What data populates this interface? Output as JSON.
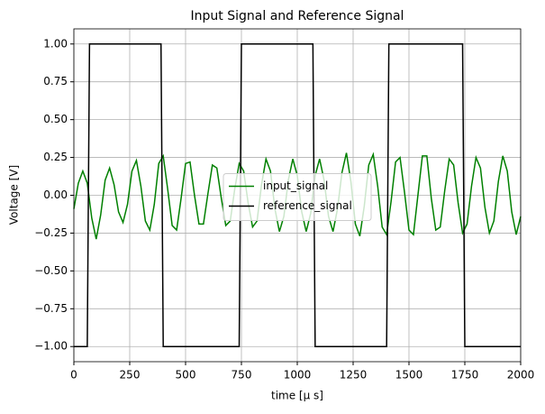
{
  "chart_data": {
    "type": "line",
    "title": "Input Signal and Reference Signal",
    "x_label": "time [μ s]",
    "y_label": "Voltage [V]",
    "xlim": [
      0,
      2000
    ],
    "xticks": [
      0,
      250,
      500,
      750,
      1000,
      1250,
      1500,
      1750,
      2000
    ],
    "ylim": [
      -1.1,
      1.1
    ],
    "yticks": [
      {
        "value": -1,
        "label": "−1.00"
      },
      {
        "value": -0.75,
        "label": "−0.75"
      },
      {
        "value": -0.5,
        "label": "−0.50"
      },
      {
        "value": -0.25,
        "label": "−0.25"
      },
      {
        "value": 0,
        "label": "0.00"
      },
      {
        "value": 0.25,
        "label": "0.25"
      },
      {
        "value": 0.5,
        "label": "0.50"
      },
      {
        "value": 0.75,
        "label": "0.75"
      },
      {
        "value": 1,
        "label": "1.00"
      }
    ],
    "grid": true,
    "legend": "center",
    "series": [
      {
        "name": "input_signal",
        "color": "#008000",
        "x": [
          0,
          20,
          40,
          60,
          80,
          100,
          120,
          140,
          160,
          180,
          200,
          220,
          240,
          260,
          280,
          300,
          320,
          340,
          360,
          380,
          400,
          420,
          440,
          460,
          480,
          500,
          520,
          540,
          560,
          580,
          600,
          620,
          640,
          660,
          680,
          700,
          720,
          740,
          760,
          780,
          800,
          820,
          840,
          860,
          880,
          900,
          920,
          940,
          960,
          980,
          1000,
          1020,
          1040,
          1060,
          1080,
          1100,
          1120,
          1140,
          1160,
          1180,
          1200,
          1220,
          1240,
          1260,
          1280,
          1300,
          1320,
          1340,
          1360,
          1380,
          1400,
          1420,
          1440,
          1460,
          1480,
          1500,
          1520,
          1540,
          1560,
          1580,
          1600,
          1620,
          1640,
          1660,
          1680,
          1700,
          1720,
          1740,
          1760,
          1780,
          1800,
          1820,
          1840,
          1860,
          1880,
          1900,
          1920,
          1940,
          1960,
          1980,
          2000
        ],
        "values": [
          -0.09,
          0.08,
          0.16,
          0.08,
          -0.15,
          -0.29,
          -0.13,
          0.1,
          0.18,
          0.07,
          -0.11,
          -0.18,
          -0.06,
          0.16,
          0.23,
          0.06,
          -0.17,
          -0.23,
          -0.06,
          0.21,
          0.26,
          0.04,
          -0.2,
          -0.23,
          -0.02,
          0.21,
          0.22,
          0.0,
          -0.19,
          -0.19,
          0.01,
          0.2,
          0.18,
          -0.02,
          -0.2,
          -0.17,
          0.04,
          0.21,
          0.16,
          -0.05,
          -0.21,
          -0.17,
          0.07,
          0.24,
          0.16,
          -0.09,
          -0.24,
          -0.14,
          0.1,
          0.24,
          0.13,
          -0.11,
          -0.24,
          -0.12,
          0.13,
          0.24,
          0.1,
          -0.14,
          -0.24,
          -0.09,
          0.15,
          0.28,
          0.09,
          -0.19,
          -0.27,
          -0.07,
          0.2,
          0.27,
          0.06,
          -0.21,
          -0.26,
          -0.04,
          0.22,
          0.25,
          0.02,
          -0.23,
          -0.26,
          0.0,
          0.26,
          0.26,
          -0.02,
          -0.23,
          -0.21,
          0.03,
          0.24,
          0.2,
          -0.05,
          -0.25,
          -0.19,
          0.06,
          0.25,
          0.18,
          -0.08,
          -0.25,
          -0.17,
          0.09,
          0.26,
          0.16,
          -0.11,
          -0.26,
          -0.14
        ]
      },
      {
        "name": "reference_signal",
        "color": "#000000",
        "x": [
          0,
          60,
          70,
          390,
          400,
          740,
          750,
          1070,
          1080,
          1400,
          1410,
          1740,
          1750,
          2000
        ],
        "values": [
          -1,
          -1,
          1,
          1,
          -1,
          -1,
          1,
          1,
          -1,
          -1,
          1,
          1,
          -1,
          -1
        ]
      }
    ]
  }
}
